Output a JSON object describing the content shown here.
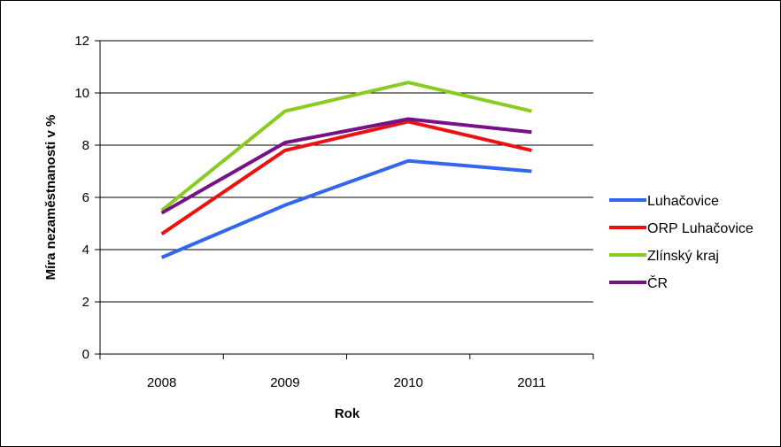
{
  "chart_data": {
    "type": "line",
    "title": "",
    "xlabel": "Rok",
    "ylabel": "Míra nezaměstnanosti v %",
    "categories": [
      "2008",
      "2009",
      "2010",
      "2011"
    ],
    "ylim": [
      0,
      12
    ],
    "yticks": [
      0,
      2,
      4,
      6,
      8,
      10,
      12
    ],
    "ytick_labels": [
      "0",
      "2",
      "4",
      "6",
      "8",
      "10",
      "12"
    ],
    "grid": true,
    "legend_position": "right",
    "series": [
      {
        "name": "Luhačovice",
        "color": "#3366ee",
        "values": [
          3.7,
          5.7,
          7.4,
          7.0
        ]
      },
      {
        "name": "ORP Luhačovice",
        "color": "#ee1111",
        "values": [
          4.6,
          7.8,
          8.9,
          7.8
        ]
      },
      {
        "name": "Zlínský kraj",
        "color": "#88cc22",
        "values": [
          5.5,
          9.3,
          10.4,
          9.3
        ]
      },
      {
        "name": "ČR",
        "color": "#771188",
        "values": [
          5.4,
          8.1,
          9.0,
          8.5
        ]
      }
    ]
  }
}
